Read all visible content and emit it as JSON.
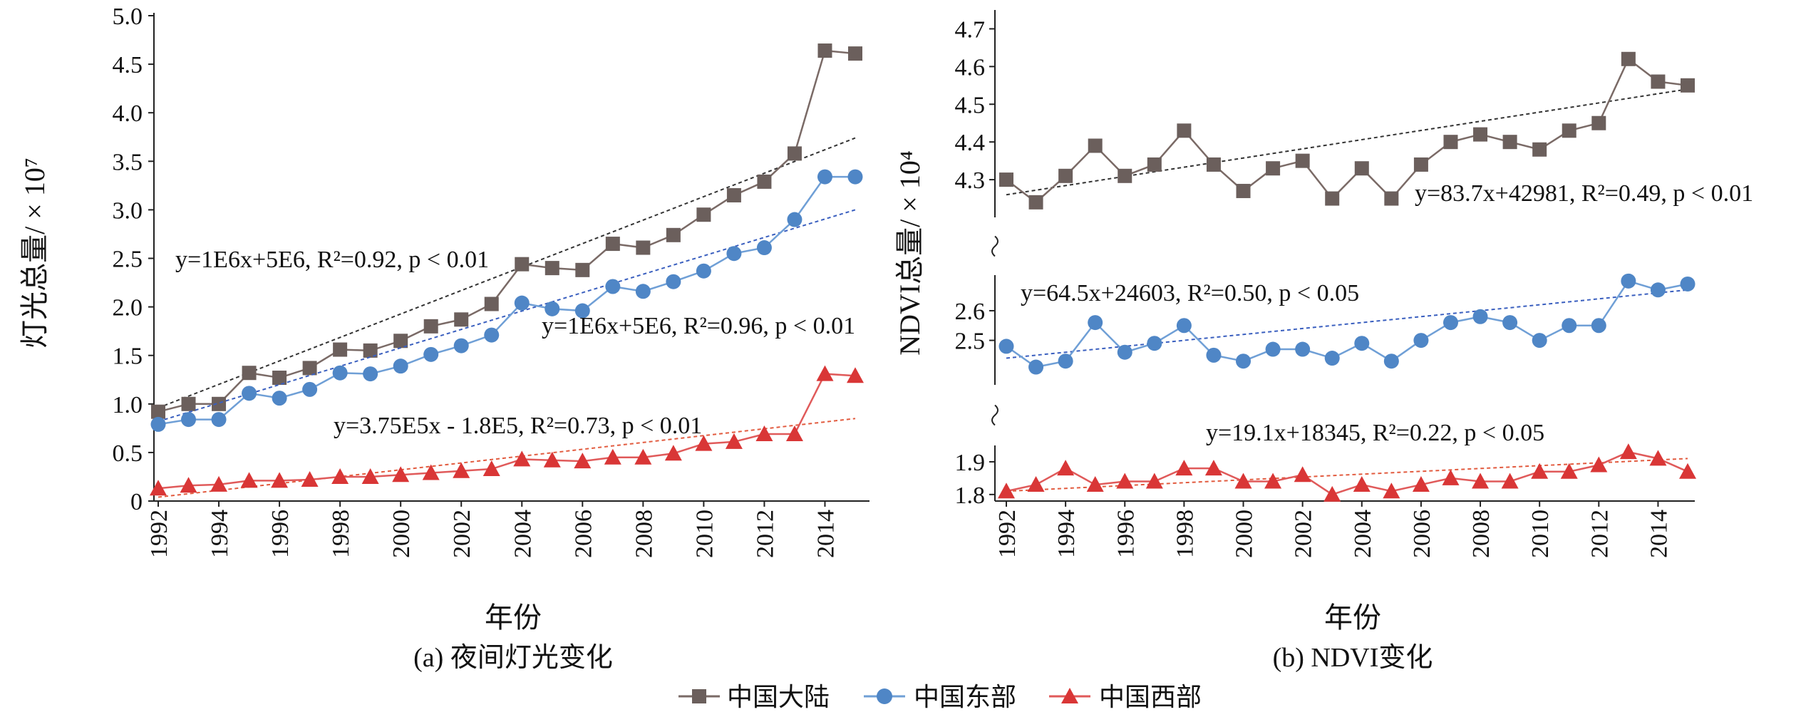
{
  "colors": {
    "mainland": "#7a6a66",
    "mainland_marker": "#6b5f5c",
    "east": "#6f9fd6",
    "east_marker": "#4f86c6",
    "west": "#e05a5a",
    "west_marker": "#d93636",
    "trend_mainland": "#333333",
    "trend_east": "#3a5fbf",
    "trend_west": "#e25b3f"
  },
  "legend": {
    "items": [
      {
        "name": "中国大陆",
        "marker": "square"
      },
      {
        "name": "中国东部",
        "marker": "circle"
      },
      {
        "name": "中国西部",
        "marker": "triangle"
      }
    ],
    "placement": "bottom-center"
  },
  "chart_data": [
    {
      "type": "line",
      "caption": "(a) 夜间灯光变化",
      "xlabel": "年份",
      "ylabel": "灯光总量/ × 10⁷",
      "ylim": [
        0,
        5.0
      ],
      "yticks": [
        "0",
        "0.5",
        "1.0",
        "1.5",
        "2.0",
        "2.5",
        "3.0",
        "3.5",
        "4.0",
        "4.5",
        "5.0"
      ],
      "xticks": [
        "1992",
        "1994",
        "1996",
        "1998",
        "2000",
        "2002",
        "2004",
        "2006",
        "2008",
        "2010",
        "2012",
        "2014"
      ],
      "x": [
        1992,
        1993,
        1994,
        1995,
        1996,
        1997,
        1998,
        1999,
        2000,
        2001,
        2002,
        2003,
        2004,
        2005,
        2006,
        2007,
        2008,
        2009,
        2010,
        2011,
        2012,
        2013,
        2014,
        2015
      ],
      "grid": false,
      "series": [
        {
          "name": "中国大陆",
          "values": [
            0.92,
            1.0,
            1.0,
            1.32,
            1.27,
            1.37,
            1.56,
            1.55,
            1.65,
            1.8,
            1.87,
            2.03,
            2.44,
            2.4,
            2.38,
            2.65,
            2.61,
            2.74,
            2.95,
            3.15,
            3.29,
            3.58,
            4.64,
            4.61
          ],
          "trend": {
            "y": [
              0.96,
              3.74
            ],
            "label": "y=1E6x+5E6, R²=0.92, p < 0.01"
          }
        },
        {
          "name": "中国东部",
          "values": [
            0.79,
            0.84,
            0.84,
            1.11,
            1.06,
            1.15,
            1.32,
            1.31,
            1.39,
            1.51,
            1.6,
            1.71,
            2.04,
            1.98,
            1.96,
            2.21,
            2.16,
            2.26,
            2.37,
            2.55,
            2.61,
            2.9,
            3.34,
            3.34
          ],
          "trend": {
            "y": [
              0.82,
              3.0
            ],
            "label": "y=1E6x+5E6, R²=0.96, p < 0.01"
          }
        },
        {
          "name": "中国西部",
          "values": [
            0.13,
            0.16,
            0.17,
            0.21,
            0.21,
            0.22,
            0.25,
            0.25,
            0.27,
            0.29,
            0.31,
            0.33,
            0.43,
            0.42,
            0.41,
            0.45,
            0.45,
            0.49,
            0.59,
            0.61,
            0.69,
            0.69,
            1.31,
            1.29
          ],
          "trend": {
            "y": [
              0.04,
              0.85
            ],
            "label": "y=3.75E5x - 1.8E5, R²=0.73, p < 0.01"
          }
        }
      ]
    },
    {
      "type": "line",
      "caption": "(b) NDVI变化",
      "xlabel": "年份",
      "ylabel": "NDVI总量/ × 10⁴",
      "broken_axis": true,
      "segments": [
        {
          "ylim": [
            4.2,
            4.75
          ],
          "yticks": [
            "4.3",
            "4.4",
            "4.5",
            "4.6",
            "4.7"
          ]
        },
        {
          "ylim": [
            2.35,
            2.72
          ],
          "yticks": [
            "2.5",
            "2.6"
          ]
        },
        {
          "ylim": [
            1.78,
            1.95
          ],
          "yticks": [
            "1.8",
            "1.9"
          ]
        }
      ],
      "xticks": [
        "1992",
        "1994",
        "1996",
        "1998",
        "2000",
        "2002",
        "2004",
        "2006",
        "2008",
        "2010",
        "2012",
        "2014"
      ],
      "x": [
        1992,
        1993,
        1994,
        1995,
        1996,
        1997,
        1998,
        1999,
        2000,
        2001,
        2002,
        2003,
        2004,
        2005,
        2006,
        2007,
        2008,
        2009,
        2010,
        2011,
        2012,
        2013,
        2014,
        2015
      ],
      "grid": false,
      "series": [
        {
          "name": "中国大陆",
          "values": [
            4.3,
            4.24,
            4.31,
            4.39,
            4.31,
            4.34,
            4.43,
            4.34,
            4.27,
            4.33,
            4.35,
            4.25,
            4.33,
            4.25,
            4.34,
            4.4,
            4.42,
            4.4,
            4.38,
            4.43,
            4.45,
            4.62,
            4.56,
            4.55
          ],
          "trend": {
            "y": [
              4.26,
              4.54
            ],
            "label": "y=83.7x+42981, R²=0.49, p < 0.01"
          }
        },
        {
          "name": "中国东部",
          "values": [
            2.48,
            2.41,
            2.43,
            2.56,
            2.46,
            2.49,
            2.55,
            2.45,
            2.43,
            2.47,
            2.47,
            2.44,
            2.49,
            2.43,
            2.5,
            2.56,
            2.58,
            2.56,
            2.5,
            2.55,
            2.55,
            2.7,
            2.67,
            2.69
          ],
          "trend": {
            "y": [
              2.44,
              2.67
            ],
            "label": "y=64.5x+24603, R²=0.50, p < 0.05"
          }
        },
        {
          "name": "中国西部",
          "values": [
            1.81,
            1.83,
            1.88,
            1.83,
            1.84,
            1.84,
            1.88,
            1.88,
            1.84,
            1.84,
            1.86,
            1.8,
            1.83,
            1.81,
            1.83,
            1.85,
            1.84,
            1.84,
            1.87,
            1.87,
            1.89,
            1.93,
            1.91,
            1.87
          ],
          "trend": {
            "y": [
              1.81,
              1.91
            ],
            "label": "y=19.1x+18345, R²=0.22, p < 0.05"
          }
        }
      ]
    }
  ]
}
